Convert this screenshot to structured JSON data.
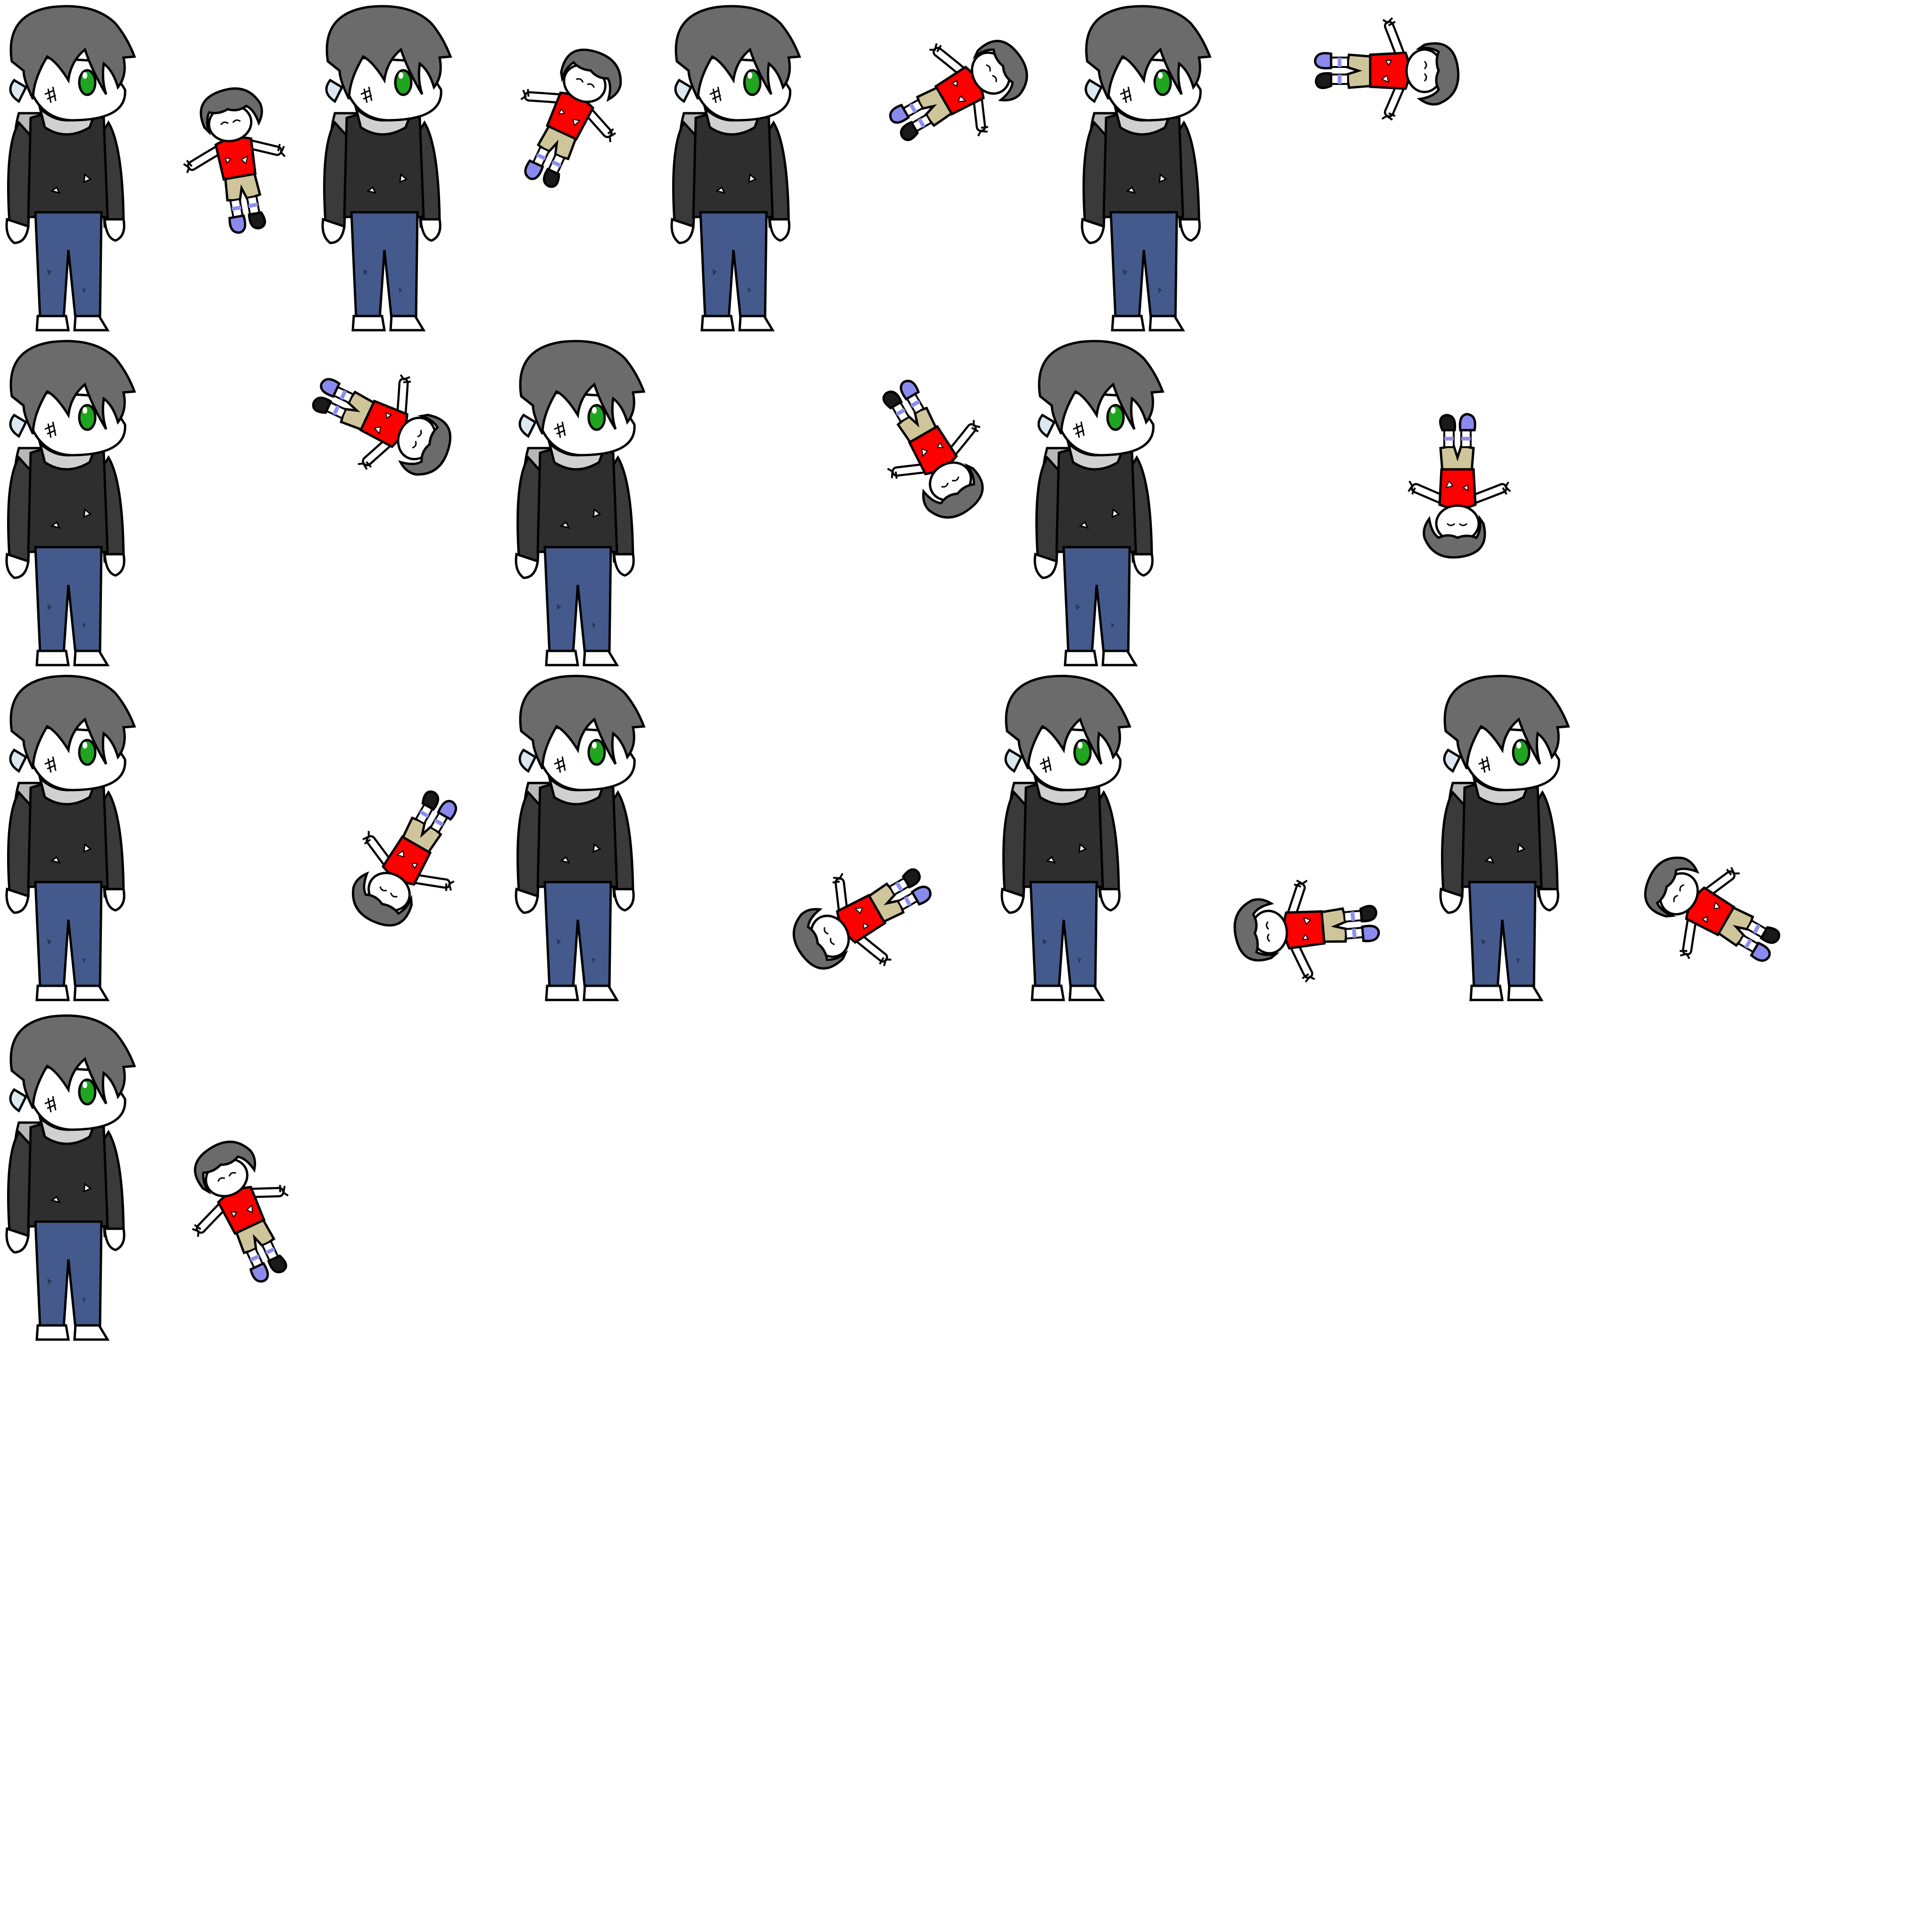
{
  "sheet": {
    "background": "#ffffff",
    "outline": "#000000",
    "frames": [
      {
        "row": 1,
        "rotation": -10
      },
      {
        "row": 1,
        "rotation": 25
      },
      {
        "row": 1,
        "rotation": 60
      },
      {
        "row": 1,
        "rotation": 90
      },
      {
        "row": 2,
        "rotation": 115
      },
      {
        "row": 2,
        "rotation": 150
      },
      {
        "row": 2,
        "rotation": 180
      },
      {
        "row": 3,
        "rotation": 210
      },
      {
        "row": 3,
        "rotation": 240
      },
      {
        "row": 3,
        "rotation": 265
      },
      {
        "row": 3,
        "rotation": 300
      },
      {
        "row": 4,
        "rotation": 335
      }
    ]
  },
  "standing_character": {
    "name": "tall-boy",
    "colors": {
      "hair": "#6b6b6b",
      "hair_dark": "#545454",
      "skin": "#ffffff",
      "ear": "#dce8f0",
      "eye": "#1fa51f",
      "hoodie": "#2e2e2e",
      "hood": "#b8b8b8",
      "sleeve": "#3a3a3a",
      "jeans": "#455a8c",
      "shoe": "#ffffff"
    }
  },
  "thrown_character": {
    "name": "small-boy",
    "colors": {
      "hair": "#6b6b6b",
      "skin": "#ffffff",
      "shirt": "#ff0000",
      "shorts": "#cfc59a",
      "sock": "#8e8ef0",
      "shoe_left": "#8a8aee",
      "shoe_right": "#1a1a1a"
    }
  }
}
